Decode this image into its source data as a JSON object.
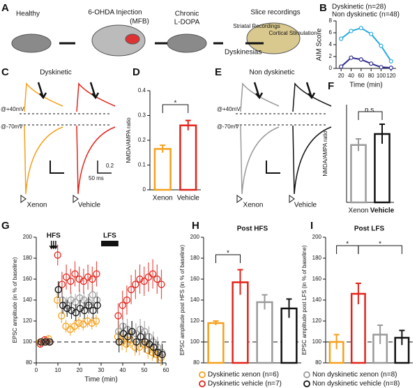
{
  "panel_labels": [
    "A",
    "B",
    "C",
    "D",
    "E",
    "F",
    "G",
    "H",
    "I"
  ],
  "schematic": {
    "healthy": "Healthy",
    "injection": "6-OHDA Injection",
    "site": "(MFB)",
    "chronic": "Chronic",
    "drug": "L-DOPA",
    "outcome": "Dyskinesias",
    "slice": "Slice recordings",
    "striatal": "Striatal Recordings",
    "cortical": "Cortical Stimulation"
  },
  "traces": [
    {
      "title": "Dyskinetic",
      "holding_pos": "@+40mV",
      "holding_neg": "@-70mV",
      "left": "Xenon",
      "right": "Vehicle",
      "scale_y": "0.2",
      "scale_x": "50 ms"
    },
    {
      "title": "Non dyskinetic",
      "holding_pos": "@+40mV",
      "holding_neg": "@-70mV",
      "left": "Xenon",
      "right": "Vehicle"
    }
  ],
  "chart_data": [
    {
      "type": "line",
      "ylabel": "AIM Score",
      "xlabel": "Time (min)",
      "x": [
        20,
        40,
        60,
        80,
        100,
        120
      ],
      "xlim": [
        10,
        130
      ],
      "xticks": [
        20,
        40,
        60,
        80,
        100,
        120
      ],
      "ylim": [
        0,
        8
      ],
      "yticks": [
        0,
        2,
        4,
        6,
        8
      ],
      "series": [
        {
          "name": "Dyskinetic (n=28)",
          "color": "#29a9e0",
          "values": [
            5,
            6.3,
            6.8,
            5.8,
            3.8,
            1.2
          ]
        },
        {
          "name": "Non dyskinetic (n=48)",
          "color": "#2e2a8c",
          "values": [
            0.3,
            1.8,
            1.5,
            0.8,
            0.2,
            0.1
          ]
        }
      ]
    },
    {
      "type": "bar",
      "ylabel": "NMDA/AMPA ratio",
      "categories": [
        "Xenon",
        "Vehicle"
      ],
      "values": [
        0.165,
        0.26
      ],
      "errors": [
        0.015,
        0.02
      ],
      "colors": [
        "#f5a01a",
        "#e2231a"
      ],
      "ylim": [
        0,
        0.4
      ],
      "yticks": [
        0,
        0.1,
        0.2,
        0.3,
        0.4
      ],
      "annotations": [
        "*"
      ]
    },
    {
      "type": "bar",
      "ylabel": "NMDA/AMPA ratio",
      "categories": [
        "Xenon",
        "Vehicle"
      ],
      "values": [
        0.235,
        0.28
      ],
      "errors": [
        0.025,
        0.04
      ],
      "colors": [
        "#9a9a9a",
        "#111111"
      ],
      "ylim": [
        0,
        0.4
      ],
      "annotations": [
        "n.s."
      ]
    },
    {
      "type": "scatter",
      "ylabel": "EPSC amplitude (in % of baseline)",
      "xlabel": "Time (min)",
      "x": [
        2,
        4,
        6,
        10,
        12,
        14,
        16,
        18,
        20,
        22,
        24,
        26,
        28,
        38,
        40,
        42,
        44,
        46,
        48,
        50,
        52,
        54,
        56,
        58
      ],
      "xlim": [
        0,
        60
      ],
      "xticks": [
        0,
        10,
        20,
        30,
        40,
        50,
        60
      ],
      "ylim": [
        80,
        200
      ],
      "yticks": [
        80,
        100,
        120,
        140,
        160,
        180,
        200
      ],
      "reference_line": 100,
      "hfs_label": "HFS",
      "hfs_times": [
        7,
        8,
        9
      ],
      "lfs_label": "LFS",
      "lfs_window": [
        30,
        38
      ],
      "series": [
        {
          "name": "Dyskinetic xenon (n=6)",
          "color": "#f5a01a",
          "values": [
            100,
            100,
            103,
            140,
            125,
            115,
            112,
            115,
            118,
            117,
            120,
            118,
            120,
            105,
            100,
            98,
            102,
            95,
            95,
            98,
            92,
            90,
            88,
            85
          ],
          "errors": [
            3,
            3,
            3,
            8,
            7,
            6,
            6,
            6,
            6,
            6,
            6,
            6,
            6,
            8,
            8,
            8,
            8,
            8,
            8,
            8,
            8,
            8,
            8,
            8
          ]
        },
        {
          "name": "Dyskinetic vehicle (n=7)",
          "color": "#e2231a",
          "values": [
            98,
            102,
            100,
            183,
            155,
            162,
            158,
            165,
            160,
            158,
            162,
            160,
            165,
            125,
            135,
            140,
            150,
            155,
            160,
            158,
            162,
            165,
            160,
            155
          ],
          "errors": [
            3,
            3,
            3,
            10,
            12,
            12,
            12,
            12,
            12,
            12,
            12,
            12,
            12,
            12,
            14,
            14,
            14,
            14,
            14,
            14,
            14,
            14,
            14,
            14
          ]
        },
        {
          "name": "Non dyskinetic xenon (n=8)",
          "color": "#9a9a9a",
          "values": [
            100,
            100,
            100,
            150,
            140,
            135,
            140,
            138,
            142,
            140,
            138,
            145,
            140,
            110,
            115,
            112,
            110,
            108,
            112,
            110,
            105,
            100,
            95,
            90
          ],
          "errors": [
            2,
            2,
            2,
            8,
            8,
            8,
            8,
            8,
            8,
            8,
            8,
            8,
            8,
            10,
            10,
            10,
            10,
            10,
            10,
            10,
            10,
            10,
            10,
            10
          ]
        },
        {
          "name": "Non dyskinetic vehicle (n=8)",
          "color": "#111111",
          "values": [
            100,
            100,
            100,
            150,
            135,
            132,
            130,
            128,
            132,
            130,
            135,
            130,
            135,
            100,
            108,
            105,
            110,
            100,
            105,
            100,
            98,
            95,
            90,
            88
          ],
          "errors": [
            2,
            2,
            2,
            8,
            8,
            8,
            8,
            8,
            8,
            8,
            8,
            8,
            8,
            10,
            10,
            10,
            10,
            10,
            10,
            10,
            10,
            10,
            10,
            10
          ]
        }
      ]
    },
    {
      "type": "bar",
      "title": "Post HFS",
      "ylabel": "EPSC amplitude post HFS (in % of baseline)",
      "categories": [
        null,
        null,
        null,
        null
      ],
      "values": [
        118,
        157,
        138,
        132
      ],
      "errors": [
        2,
        12,
        7,
        9
      ],
      "colors": [
        "#f5a01a",
        "#e2231a",
        "#9a9a9a",
        "#111111"
      ],
      "ylim": [
        80,
        200
      ],
      "yticks": [
        80,
        100,
        120,
        140,
        160,
        180,
        200
      ],
      "reference_line": 100,
      "annotations": [
        "*"
      ]
    },
    {
      "type": "bar",
      "title": "Post LFS",
      "ylabel": "EPSC amplitude post LFS (in % of baseline)",
      "categories": [
        null,
        null,
        null,
        null
      ],
      "values": [
        100,
        146,
        107,
        104
      ],
      "errors": [
        7,
        10,
        9,
        7
      ],
      "colors": [
        "#f5a01a",
        "#e2231a",
        "#9a9a9a",
        "#111111"
      ],
      "ylim": [
        80,
        200
      ],
      "yticks": [
        80,
        100,
        120,
        140,
        160,
        180,
        200
      ],
      "reference_line": 100,
      "annotations": [
        "*",
        "*"
      ]
    }
  ]
}
